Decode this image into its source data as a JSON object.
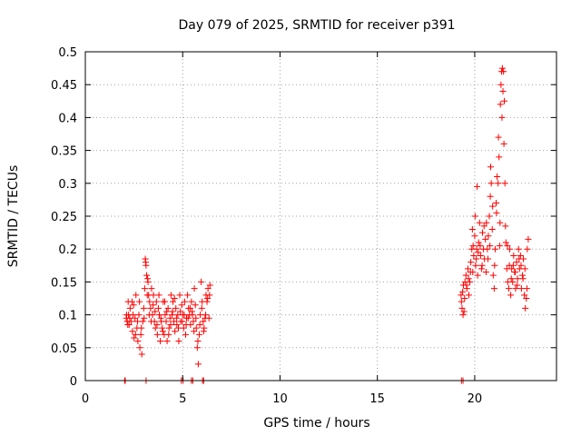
{
  "chart_data": {
    "type": "scatter",
    "title": "Day 079 of 2025, SRMTID for receiver p391",
    "xlabel": "GPS time / hours",
    "ylabel": "SRMTID / TECUs",
    "xlim": [
      0,
      24.2
    ],
    "ylim": [
      0,
      0.5
    ],
    "grid": true,
    "marker": "+",
    "color": "#ff0000",
    "x_ticks": [
      0,
      5,
      10,
      15,
      20
    ],
    "x_tick_labels": [
      "0",
      "5",
      "10",
      "15",
      "20"
    ],
    "y_ticks": [
      0,
      0.05,
      0.1,
      0.15,
      0.2,
      0.25,
      0.3,
      0.35,
      0.4,
      0.45,
      0.5
    ],
    "y_tick_labels": [
      "0",
      "0.05",
      "0.1",
      "0.15",
      "0.2",
      "0.25",
      "0.3",
      "0.35",
      "0.4",
      "0.45",
      "0.5"
    ],
    "series": [
      {
        "name": "SRMTID",
        "points": [
          [
            2.02,
            0.0
          ],
          [
            2.05,
            0.0
          ],
          [
            3.12,
            0.0
          ],
          [
            4.93,
            0.0
          ],
          [
            5.02,
            0.0
          ],
          [
            5.45,
            0.0
          ],
          [
            5.52,
            0.0
          ],
          [
            6.02,
            0.0
          ],
          [
            6.08,
            0.0
          ],
          [
            19.32,
            0.0
          ],
          [
            19.4,
            0.0
          ],
          [
            2.1,
            0.095
          ],
          [
            2.15,
            0.09
          ],
          [
            2.2,
            0.12
          ],
          [
            2.22,
            0.1
          ],
          [
            2.25,
            0.085
          ],
          [
            2.3,
            0.11
          ],
          [
            2.35,
            0.09
          ],
          [
            2.4,
            0.12
          ],
          [
            2.42,
            0.075
          ],
          [
            2.45,
            0.1
          ],
          [
            2.5,
            0.065
          ],
          [
            2.55,
            0.095
          ],
          [
            2.6,
            0.13
          ],
          [
            2.65,
            0.08
          ],
          [
            2.7,
            0.06
          ],
          [
            2.75,
            0.1
          ],
          [
            2.8,
            0.05
          ],
          [
            2.85,
            0.07
          ],
          [
            2.9,
            0.04
          ],
          [
            2.95,
            0.09
          ],
          [
            3.0,
            0.11
          ],
          [
            3.05,
            0.14
          ],
          [
            3.08,
            0.185
          ],
          [
            3.1,
            0.18
          ],
          [
            3.12,
            0.175
          ],
          [
            3.15,
            0.16
          ],
          [
            3.2,
            0.155
          ],
          [
            3.22,
            0.15
          ],
          [
            3.25,
            0.13
          ],
          [
            3.3,
            0.12
          ],
          [
            3.35,
            0.11
          ],
          [
            3.4,
            0.14
          ],
          [
            3.45,
            0.1
          ],
          [
            3.5,
            0.13
          ],
          [
            3.55,
            0.09
          ],
          [
            3.6,
            0.08
          ],
          [
            3.65,
            0.12
          ],
          [
            3.7,
            0.07
          ],
          [
            3.75,
            0.11
          ],
          [
            3.8,
            0.1
          ],
          [
            3.85,
            0.06
          ],
          [
            3.9,
            0.09
          ],
          [
            3.95,
            0.08
          ],
          [
            4.0,
            0.12
          ],
          [
            4.05,
            0.07
          ],
          [
            4.1,
            0.1
          ],
          [
            4.15,
            0.09
          ],
          [
            4.2,
            0.06
          ],
          [
            4.25,
            0.11
          ],
          [
            4.3,
            0.08
          ],
          [
            4.35,
            0.095
          ],
          [
            4.4,
            0.13
          ],
          [
            4.45,
            0.1
          ],
          [
            4.5,
            0.12
          ],
          [
            4.55,
            0.09
          ],
          [
            4.6,
            0.075
          ],
          [
            4.65,
            0.11
          ],
          [
            4.7,
            0.085
          ],
          [
            4.75,
            0.1
          ],
          [
            4.8,
            0.06
          ],
          [
            4.85,
            0.13
          ],
          [
            4.9,
            0.09
          ],
          [
            4.95,
            0.115
          ],
          [
            5.0,
            0.1
          ],
          [
            5.05,
            0.08
          ],
          [
            5.1,
            0.12
          ],
          [
            5.15,
            0.07
          ],
          [
            5.2,
            0.095
          ],
          [
            5.25,
            0.13
          ],
          [
            5.3,
            0.11
          ],
          [
            5.35,
            0.1
          ],
          [
            5.4,
            0.085
          ],
          [
            5.45,
            0.12
          ],
          [
            5.5,
            0.1
          ],
          [
            5.55,
            0.09
          ],
          [
            5.6,
            0.14
          ],
          [
            5.65,
            0.115
          ],
          [
            5.7,
            0.08
          ],
          [
            5.75,
            0.05
          ],
          [
            5.8,
            0.025
          ],
          [
            5.85,
            0.07
          ],
          [
            5.9,
            0.1
          ],
          [
            5.95,
            0.15
          ],
          [
            6.0,
            0.12
          ],
          [
            6.05,
            0.09
          ],
          [
            6.1,
            0.08
          ],
          [
            6.15,
            0.095
          ],
          [
            6.2,
            0.13
          ],
          [
            6.25,
            0.12
          ],
          [
            6.3,
            0.14
          ],
          [
            6.35,
            0.095
          ],
          [
            6.4,
            0.145
          ],
          [
            2.12,
            0.1
          ],
          [
            2.18,
            0.085
          ],
          [
            2.28,
            0.095
          ],
          [
            2.48,
            0.115
          ],
          [
            2.58,
            0.07
          ],
          [
            2.68,
            0.09
          ],
          [
            2.78,
            0.12
          ],
          [
            2.88,
            0.08
          ],
          [
            3.02,
            0.095
          ],
          [
            3.18,
            0.13
          ],
          [
            3.28,
            0.1
          ],
          [
            3.38,
            0.09
          ],
          [
            3.48,
            0.115
          ],
          [
            3.58,
            0.105
          ],
          [
            3.68,
            0.085
          ],
          [
            3.78,
            0.13
          ],
          [
            3.88,
            0.095
          ],
          [
            3.98,
            0.075
          ],
          [
            4.08,
            0.12
          ],
          [
            4.18,
            0.105
          ],
          [
            4.28,
            0.07
          ],
          [
            4.38,
            0.085
          ],
          [
            4.48,
            0.105
          ],
          [
            4.58,
            0.125
          ],
          [
            4.68,
            0.095
          ],
          [
            4.78,
            0.08
          ],
          [
            4.88,
            0.105
          ],
          [
            4.98,
            0.09
          ],
          [
            5.08,
            0.1
          ],
          [
            5.18,
            0.085
          ],
          [
            5.28,
            0.095
          ],
          [
            5.38,
            0.11
          ],
          [
            5.48,
            0.105
          ],
          [
            5.58,
            0.075
          ],
          [
            5.68,
            0.095
          ],
          [
            5.78,
            0.06
          ],
          [
            5.88,
            0.085
          ],
          [
            5.98,
            0.11
          ],
          [
            6.08,
            0.075
          ],
          [
            6.18,
            0.1
          ],
          [
            6.28,
            0.125
          ],
          [
            6.38,
            0.13
          ],
          [
            19.3,
            0.13
          ],
          [
            19.35,
            0.11
          ],
          [
            19.4,
            0.1
          ],
          [
            19.42,
            0.145
          ],
          [
            19.45,
            0.105
          ],
          [
            19.5,
            0.15
          ],
          [
            19.55,
            0.16
          ],
          [
            19.6,
            0.14
          ],
          [
            19.65,
            0.17
          ],
          [
            19.7,
            0.13
          ],
          [
            19.75,
            0.15
          ],
          [
            19.8,
            0.18
          ],
          [
            19.85,
            0.2
          ],
          [
            19.88,
            0.23
          ],
          [
            19.9,
            0.165
          ],
          [
            19.95,
            0.19
          ],
          [
            20.0,
            0.22
          ],
          [
            20.02,
            0.25
          ],
          [
            20.05,
            0.175
          ],
          [
            20.1,
            0.2
          ],
          [
            20.12,
            0.295
          ],
          [
            20.15,
            0.16
          ],
          [
            20.2,
            0.21
          ],
          [
            20.25,
            0.24
          ],
          [
            20.3,
            0.19
          ],
          [
            20.35,
            0.17
          ],
          [
            20.4,
            0.225
          ],
          [
            20.45,
            0.2
          ],
          [
            20.5,
            0.185
          ],
          [
            20.55,
            0.215
          ],
          [
            20.6,
            0.24
          ],
          [
            20.65,
            0.2
          ],
          [
            20.7,
            0.22
          ],
          [
            20.75,
            0.25
          ],
          [
            20.8,
            0.28
          ],
          [
            20.82,
            0.325
          ],
          [
            20.85,
            0.3
          ],
          [
            20.9,
            0.23
          ],
          [
            20.95,
            0.16
          ],
          [
            21.0,
            0.14
          ],
          [
            21.05,
            0.2
          ],
          [
            21.1,
            0.27
          ],
          [
            21.15,
            0.31
          ],
          [
            21.2,
            0.3
          ],
          [
            21.22,
            0.37
          ],
          [
            21.25,
            0.34
          ],
          [
            21.3,
            0.24
          ],
          [
            21.32,
            0.42
          ],
          [
            21.35,
            0.45
          ],
          [
            21.38,
            0.47
          ],
          [
            21.4,
            0.4
          ],
          [
            21.42,
            0.475
          ],
          [
            21.45,
            0.44
          ],
          [
            21.48,
            0.47
          ],
          [
            21.5,
            0.36
          ],
          [
            21.52,
            0.425
          ],
          [
            21.55,
            0.3
          ],
          [
            21.6,
            0.21
          ],
          [
            21.65,
            0.17
          ],
          [
            21.7,
            0.15
          ],
          [
            21.75,
            0.14
          ],
          [
            21.8,
            0.2
          ],
          [
            21.85,
            0.13
          ],
          [
            21.9,
            0.17
          ],
          [
            21.95,
            0.15
          ],
          [
            22.0,
            0.19
          ],
          [
            22.05,
            0.165
          ],
          [
            22.1,
            0.14
          ],
          [
            22.15,
            0.18
          ],
          [
            22.2,
            0.155
          ],
          [
            22.25,
            0.2
          ],
          [
            22.3,
            0.17
          ],
          [
            22.35,
            0.19
          ],
          [
            22.4,
            0.14
          ],
          [
            22.45,
            0.16
          ],
          [
            22.5,
            0.185
          ],
          [
            22.55,
            0.13
          ],
          [
            22.6,
            0.11
          ],
          [
            22.65,
            0.125
          ],
          [
            22.7,
            0.2
          ],
          [
            22.75,
            0.215
          ],
          [
            19.32,
            0.12
          ],
          [
            19.38,
            0.135
          ],
          [
            19.48,
            0.125
          ],
          [
            19.58,
            0.145
          ],
          [
            19.68,
            0.155
          ],
          [
            19.78,
            0.165
          ],
          [
            19.92,
            0.205
          ],
          [
            20.08,
            0.185
          ],
          [
            20.18,
            0.195
          ],
          [
            20.28,
            0.205
          ],
          [
            20.38,
            0.175
          ],
          [
            20.48,
            0.235
          ],
          [
            20.58,
            0.165
          ],
          [
            20.68,
            0.185
          ],
          [
            20.78,
            0.205
          ],
          [
            20.92,
            0.265
          ],
          [
            21.02,
            0.175
          ],
          [
            21.12,
            0.255
          ],
          [
            21.28,
            0.205
          ],
          [
            21.58,
            0.235
          ],
          [
            21.68,
            0.205
          ],
          [
            21.78,
            0.175
          ],
          [
            21.88,
            0.155
          ],
          [
            21.98,
            0.175
          ],
          [
            22.08,
            0.165
          ],
          [
            22.18,
            0.145
          ],
          [
            22.28,
            0.185
          ],
          [
            22.38,
            0.175
          ],
          [
            22.48,
            0.155
          ],
          [
            22.58,
            0.17
          ],
          [
            22.68,
            0.14
          ]
        ]
      }
    ]
  }
}
